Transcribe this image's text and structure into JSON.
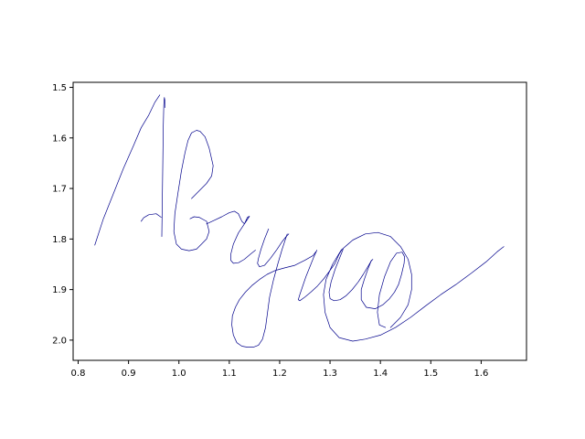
{
  "chart_data": {
    "type": "line",
    "title": "",
    "xlabel": "",
    "ylabel": "",
    "xlim": [
      0.79,
      1.69
    ],
    "ylim": [
      2.04,
      1.49
    ],
    "y_inverted": true,
    "grid": false,
    "legend": "none",
    "xticks": [
      0.8,
      0.9,
      1.0,
      1.1,
      1.2,
      1.3,
      1.4,
      1.5,
      1.6
    ],
    "xtick_labels": [
      "0.8",
      "0.9",
      "1.0",
      "1.1",
      "1.2",
      "1.3",
      "1.4",
      "1.5",
      "1.6"
    ],
    "yticks": [
      1.5,
      1.6,
      1.7,
      1.8,
      1.9,
      2.0
    ],
    "ytick_labels": [
      "1.5",
      "1.6",
      "1.7",
      "1.8",
      "1.9",
      "2.0"
    ],
    "line_color": "#00008b",
    "series": [
      {
        "x": [
          0.833,
          0.85,
          0.87,
          0.89,
          0.91,
          0.925,
          0.94,
          0.952,
          0.962
        ],
        "y": [
          1.812,
          1.76,
          1.71,
          1.66,
          1.615,
          1.58,
          1.555,
          1.53,
          1.515
        ]
      },
      {
        "x": [
          0.966,
          0.967,
          0.968,
          0.969,
          0.97,
          0.971,
          0.972,
          0.972
        ],
        "y": [
          1.795,
          1.73,
          1.65,
          1.58,
          1.535,
          1.52,
          1.525,
          1.54
        ]
      },
      {
        "x": [
          0.925,
          0.93,
          0.94,
          0.955,
          0.965
        ],
        "y": [
          1.765,
          1.758,
          1.752,
          1.75,
          1.757
        ]
      },
      {
        "x": [
          1.025,
          1.04,
          1.055,
          1.065,
          1.068,
          1.06,
          1.052,
          1.042,
          1.035,
          1.025,
          1.018,
          1.012,
          1.005,
          0.998,
          0.992,
          0.99,
          0.995,
          1.005,
          1.02,
          1.035,
          1.045,
          1.055,
          1.06,
          1.055,
          1.04,
          1.03,
          1.022
        ],
        "y": [
          1.72,
          1.705,
          1.69,
          1.675,
          1.655,
          1.62,
          1.598,
          1.587,
          1.585,
          1.59,
          1.605,
          1.63,
          1.665,
          1.71,
          1.75,
          1.785,
          1.81,
          1.82,
          1.823,
          1.82,
          1.81,
          1.8,
          1.785,
          1.765,
          1.757,
          1.756,
          1.76
        ]
      },
      {
        "x": [
          1.055,
          1.07,
          1.085,
          1.1,
          1.11,
          1.118,
          1.125,
          1.13,
          1.136,
          1.14,
          1.13,
          1.118,
          1.108,
          1.103,
          1.103,
          1.108,
          1.118,
          1.13,
          1.142,
          1.152
        ],
        "y": [
          1.77,
          1.763,
          1.756,
          1.748,
          1.745,
          1.75,
          1.765,
          1.77,
          1.757,
          1.755,
          1.77,
          1.788,
          1.81,
          1.83,
          1.842,
          1.848,
          1.847,
          1.84,
          1.83,
          1.822
        ]
      },
      {
        "x": [
          1.178,
          1.17,
          1.163,
          1.158,
          1.156,
          1.16,
          1.17,
          1.182,
          1.195,
          1.205,
          1.213,
          1.218
        ],
        "y": [
          1.78,
          1.8,
          1.82,
          1.838,
          1.848,
          1.855,
          1.852,
          1.838,
          1.82,
          1.805,
          1.795,
          1.79
        ]
      },
      {
        "x": [
          1.215,
          1.205,
          1.196,
          1.188,
          1.18,
          1.176,
          1.172,
          1.166,
          1.158,
          1.148,
          1.136,
          1.125,
          1.115,
          1.108,
          1.105,
          1.106,
          1.112,
          1.12,
          1.132,
          1.145,
          1.16,
          1.175,
          1.192,
          1.21,
          1.23,
          1.25,
          1.266,
          1.272
        ],
        "y": [
          1.79,
          1.82,
          1.85,
          1.88,
          1.915,
          1.945,
          1.975,
          1.998,
          2.01,
          2.014,
          2.014,
          2.012,
          2.005,
          1.99,
          1.97,
          1.952,
          1.935,
          1.92,
          1.905,
          1.892,
          1.88,
          1.87,
          1.862,
          1.857,
          1.852,
          1.842,
          1.833,
          1.825
        ]
      },
      {
        "x": [
          1.274,
          1.268,
          1.26,
          1.252,
          1.245,
          1.24,
          1.237,
          1.24,
          1.25,
          1.262,
          1.275,
          1.288,
          1.3,
          1.31,
          1.318,
          1.324
        ],
        "y": [
          1.822,
          1.835,
          1.855,
          1.875,
          1.895,
          1.91,
          1.92,
          1.922,
          1.915,
          1.905,
          1.893,
          1.878,
          1.862,
          1.848,
          1.83,
          1.82
        ]
      },
      {
        "x": [
          1.326,
          1.318,
          1.31,
          1.302,
          1.298,
          1.3,
          1.308,
          1.32,
          1.332,
          1.344,
          1.356,
          1.366,
          1.375,
          1.382,
          1.385
        ],
        "y": [
          1.82,
          1.84,
          1.86,
          1.885,
          1.905,
          1.918,
          1.922,
          1.92,
          1.912,
          1.9,
          1.885,
          1.87,
          1.855,
          1.843,
          1.84
        ]
      },
      {
        "x": [
          1.382,
          1.375,
          1.368,
          1.362,
          1.362,
          1.372,
          1.39,
          1.405,
          1.418,
          1.428,
          1.436,
          1.442,
          1.447,
          1.448,
          1.443,
          1.432,
          1.42,
          1.408,
          1.398,
          1.394,
          1.398,
          1.41
        ],
        "y": [
          1.842,
          1.86,
          1.88,
          1.9,
          1.92,
          1.935,
          1.938,
          1.93,
          1.918,
          1.905,
          1.89,
          1.87,
          1.848,
          1.835,
          1.826,
          1.828,
          1.845,
          1.875,
          1.91,
          1.945,
          1.97,
          1.975
        ]
      },
      {
        "x": [
          1.42,
          1.44,
          1.455,
          1.462,
          1.462,
          1.455,
          1.44,
          1.42,
          1.395,
          1.37,
          1.345,
          1.322,
          1.305,
          1.292,
          1.287,
          1.29,
          1.3,
          1.318,
          1.345,
          1.37,
          1.4,
          1.43,
          1.46,
          1.49,
          1.52,
          1.55,
          1.58,
          1.61,
          1.632,
          1.645
        ],
        "y": [
          1.975,
          1.955,
          1.93,
          1.9,
          1.87,
          1.84,
          1.815,
          1.795,
          1.787,
          1.79,
          1.802,
          1.822,
          1.85,
          1.88,
          1.91,
          1.945,
          1.975,
          1.995,
          2.002,
          1.998,
          1.99,
          1.975,
          1.955,
          1.932,
          1.91,
          1.89,
          1.868,
          1.845,
          1.825,
          1.815
        ]
      }
    ]
  }
}
